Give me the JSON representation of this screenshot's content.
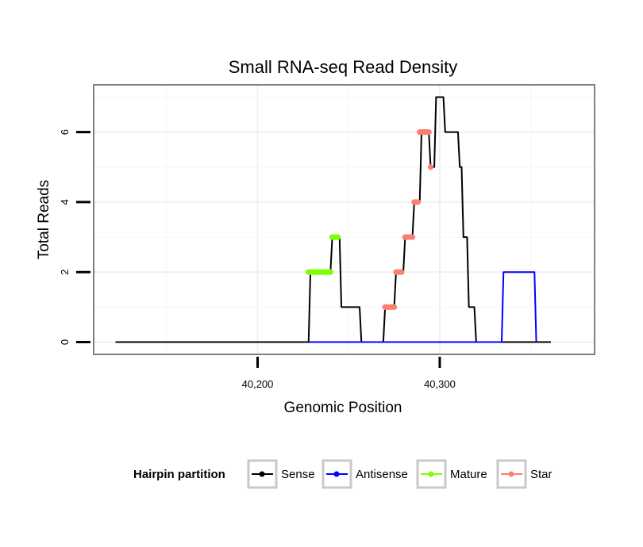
{
  "chart_data": {
    "type": "line",
    "title": "Small RNA-seq Read Density",
    "xlabel": "Genomic Position",
    "ylabel": "Total Reads",
    "xlim": [
      40110,
      40385
    ],
    "ylim": [
      -0.35,
      7.35
    ],
    "x_ticks": [
      40200,
      40300
    ],
    "x_tick_labels": [
      "40,200",
      "40,300"
    ],
    "y_ticks": [
      0,
      2,
      4,
      6
    ],
    "y_tick_labels": [
      "0",
      "2",
      "4",
      "6"
    ],
    "grid": true,
    "legend_title": "Hairpin partition",
    "legend_position": "bottom",
    "series": [
      {
        "name": "Sense",
        "color": "#000000",
        "kind": "line",
        "x": [
          40122,
          40228,
          40229,
          40240,
          40241,
          40245,
          40246,
          40256,
          40257,
          40269,
          40270,
          40275,
          40276,
          40280,
          40281,
          40285,
          40286,
          40289,
          40290,
          40294,
          40295,
          40297,
          40298,
          40302,
          40303,
          40307,
          40308,
          40310,
          40311,
          40312,
          40313,
          40315,
          40316,
          40319,
          40320,
          40322,
          40323,
          40332,
          40333,
          40334,
          40335,
          40337,
          40338,
          40340,
          40341,
          40343,
          40344,
          40346,
          40347,
          40349,
          40350,
          40352,
          40353,
          40361
        ],
        "y": [
          0,
          0,
          2,
          2,
          3,
          3,
          1,
          1,
          0,
          0,
          1,
          1,
          2,
          2,
          3,
          3,
          4,
          4,
          6,
          6,
          5,
          5,
          7,
          7,
          6,
          6,
          6,
          6,
          5,
          5,
          3,
          3,
          1,
          1,
          0,
          0,
          0,
          0,
          0,
          0,
          0,
          0,
          0,
          0,
          0,
          0,
          0,
          0,
          0,
          0,
          0,
          0,
          0,
          0
        ]
      },
      {
        "name": "Antisense",
        "color": "#0000ff",
        "kind": "line",
        "x": [
          40228,
          40334,
          40335,
          40352,
          40353
        ],
        "y": [
          0,
          0,
          2,
          2,
          0
        ]
      },
      {
        "name": "Mature",
        "color": "#7fff00",
        "kind": "points",
        "x": [
          40228,
          40229,
          40230,
          40231,
          40232,
          40233,
          40234,
          40235,
          40236,
          40237,
          40238,
          40239,
          40240,
          40241,
          40242,
          40243,
          40244
        ],
        "y": [
          2,
          2,
          2,
          2,
          2,
          2,
          2,
          2,
          2,
          2,
          2,
          2,
          2,
          3,
          3,
          3,
          3
        ]
      },
      {
        "name": "Star",
        "color": "#fa8072",
        "kind": "points",
        "x": [
          40270,
          40271,
          40272,
          40273,
          40274,
          40275,
          40276,
          40277,
          40278,
          40279,
          40281,
          40282,
          40283,
          40284,
          40285,
          40286,
          40287,
          40288,
          40289,
          40290,
          40291,
          40292,
          40293,
          40294,
          40295
        ],
        "y": [
          1,
          1,
          1,
          1,
          1,
          1,
          2,
          2,
          2,
          2,
          3,
          3,
          3,
          3,
          3,
          4,
          4,
          4,
          6,
          6,
          6,
          6,
          6,
          6,
          5
        ]
      }
    ]
  }
}
